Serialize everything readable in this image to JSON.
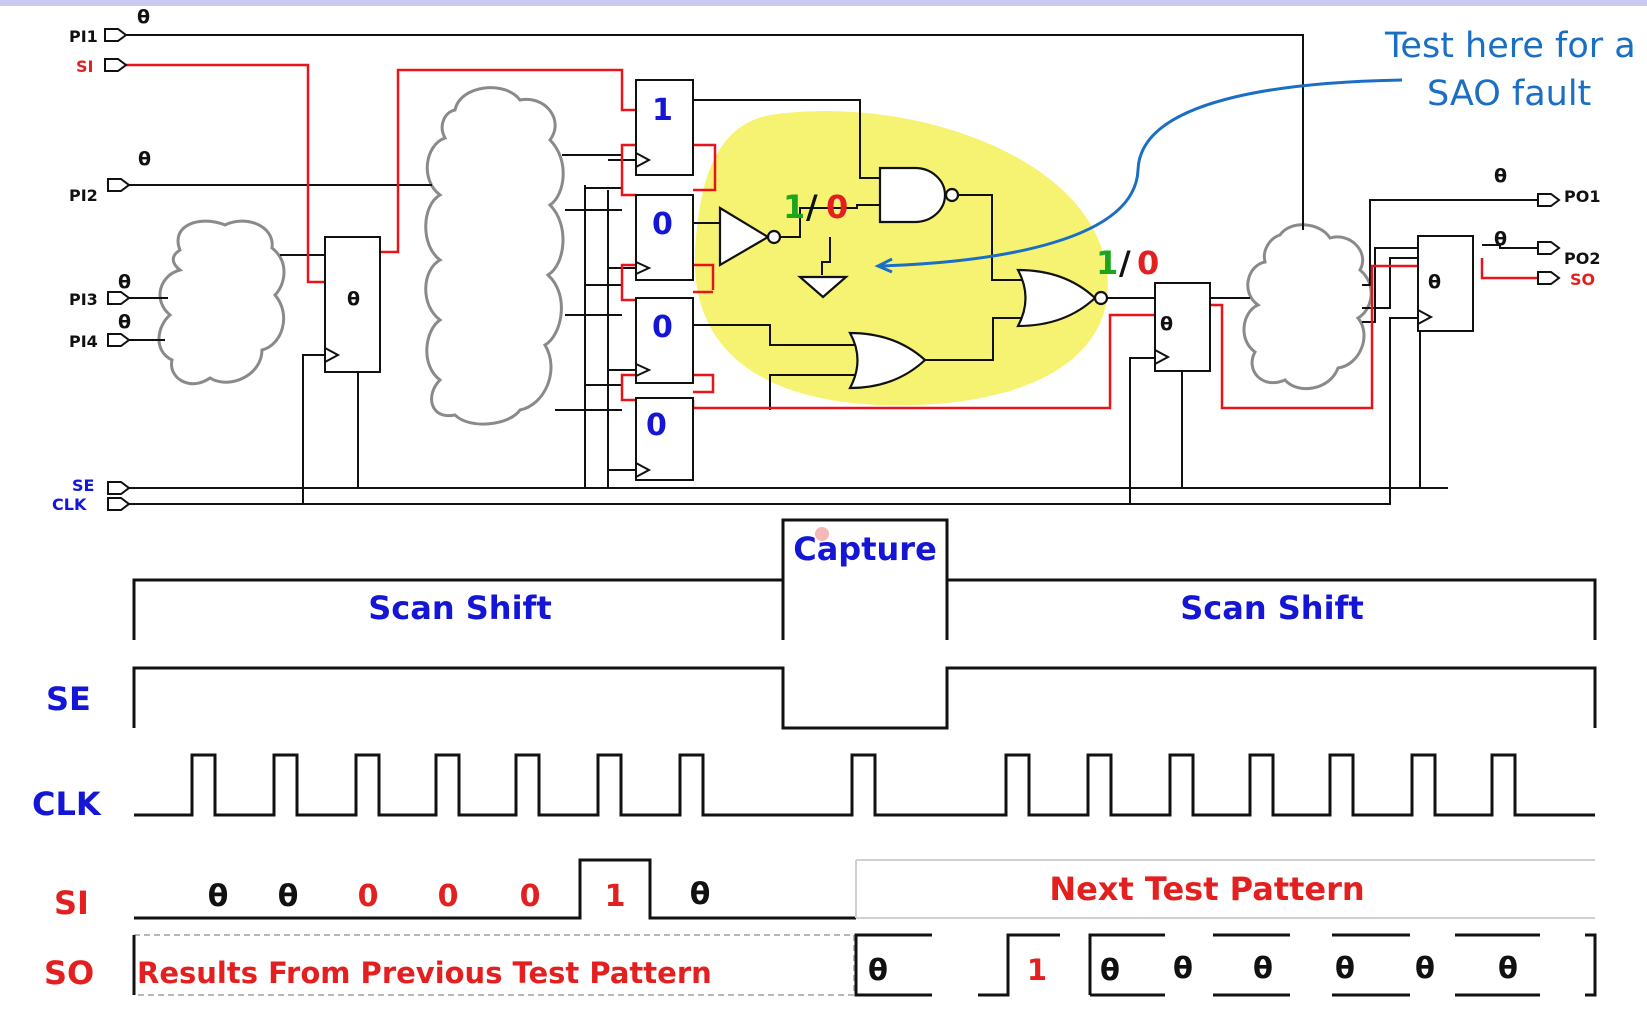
{
  "theme": {
    "wire": "#111111",
    "scan_wire": "#e8141b",
    "highlight": "#f6f26a",
    "blue_text": "#1515d6",
    "red_text": "#e41f1f",
    "green_text": "#1aa51a",
    "annotation_blue": "#1a6fc4",
    "cloud_stroke": "#8a8a8a",
    "top_bar": "#c9c9f3"
  },
  "circuit": {
    "inputs": {
      "pi1": "PI1",
      "si": "SI",
      "pi2": "PI2",
      "pi3": "PI3",
      "pi4": "PI4",
      "se": "SE",
      "clk": "CLK"
    },
    "outputs": {
      "po1": "PO1",
      "po2": "PO2",
      "so": "SO"
    },
    "theta": "θ",
    "scan_cells": [
      "1",
      "0",
      "0",
      "0"
    ],
    "fault_site_value": {
      "good": "1",
      "slash": "/",
      "faulty": "0"
    },
    "output_value": {
      "good": "1",
      "slash": "/",
      "faulty": "0"
    },
    "annotation": {
      "line1": "Test here for a",
      "line2": "SAO fault"
    }
  },
  "timing": {
    "capture": "Capture",
    "scan_shift_left": "Scan Shift",
    "scan_shift_right": "Scan Shift",
    "se_label": "SE",
    "clk_label": "CLK",
    "si_label": "SI",
    "so_label": "SO",
    "si_values": [
      "θ",
      "θ",
      "0",
      "0",
      "0",
      "1",
      "θ"
    ],
    "next_pattern": "Next Test Pattern",
    "prev_results": "Results From Previous Test Pattern",
    "so_values": [
      "θ",
      "1",
      "θ",
      "θ",
      "θ",
      "θ",
      "θ",
      "θ"
    ]
  }
}
